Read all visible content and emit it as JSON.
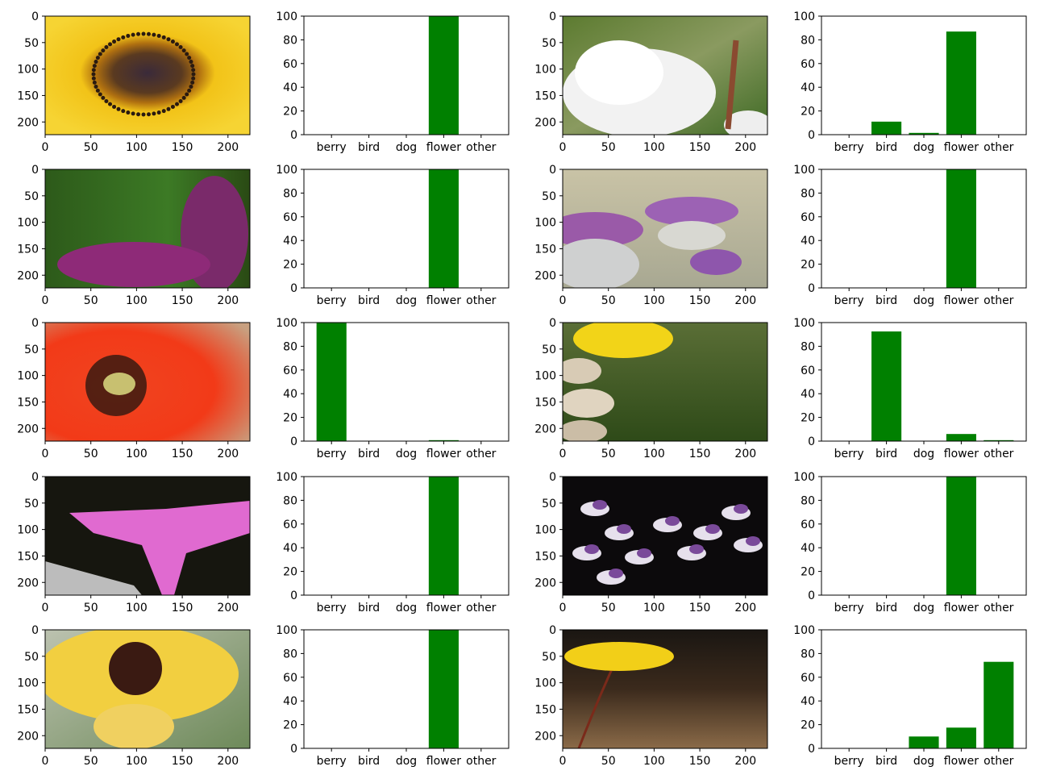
{
  "chart_data": [
    {
      "type": "image",
      "row": 1,
      "col": 1,
      "subject": "sunflower close-up",
      "xlim": [
        0,
        224
      ],
      "ylim": [
        224,
        0
      ],
      "xticks": [
        0,
        50,
        100,
        150,
        200
      ],
      "yticks": [
        0,
        50,
        100,
        150,
        200
      ]
    },
    {
      "type": "bar",
      "row": 1,
      "col": 2,
      "categories": [
        "berry",
        "bird",
        "dog",
        "flower",
        "other"
      ],
      "values": [
        0,
        0,
        0,
        100,
        0
      ],
      "ylim": [
        0,
        100
      ],
      "yticks": [
        0,
        20,
        40,
        60,
        80,
        100
      ],
      "color": "#008000"
    },
    {
      "type": "image",
      "row": 1,
      "col": 3,
      "subject": "white peony",
      "xlim": [
        0,
        224
      ],
      "ylim": [
        224,
        0
      ],
      "xticks": [
        0,
        50,
        100,
        150,
        200
      ],
      "yticks": [
        0,
        50,
        100,
        150,
        200
      ]
    },
    {
      "type": "bar",
      "row": 1,
      "col": 4,
      "categories": [
        "berry",
        "bird",
        "dog",
        "flower",
        "other"
      ],
      "values": [
        0,
        11,
        1.5,
        87,
        0
      ],
      "ylim": [
        0,
        100
      ],
      "yticks": [
        0,
        20,
        40,
        60,
        80,
        100
      ],
      "color": "#008000"
    },
    {
      "type": "image",
      "row": 2,
      "col": 1,
      "subject": "purple lilac",
      "xlim": [
        0,
        224
      ],
      "ylim": [
        224,
        0
      ],
      "xticks": [
        0,
        50,
        100,
        150,
        200
      ],
      "yticks": [
        0,
        50,
        100,
        150,
        200
      ]
    },
    {
      "type": "bar",
      "row": 2,
      "col": 2,
      "categories": [
        "berry",
        "bird",
        "dog",
        "flower",
        "other"
      ],
      "values": [
        0,
        0,
        0,
        100,
        0
      ],
      "ylim": [
        0,
        100
      ],
      "yticks": [
        0,
        20,
        40,
        60,
        80,
        100
      ],
      "color": "#008000"
    },
    {
      "type": "image",
      "row": 2,
      "col": 3,
      "subject": "thistles",
      "xlim": [
        0,
        224
      ],
      "ylim": [
        224,
        0
      ],
      "xticks": [
        0,
        50,
        100,
        150,
        200
      ],
      "yticks": [
        0,
        50,
        100,
        150,
        200
      ]
    },
    {
      "type": "bar",
      "row": 2,
      "col": 4,
      "categories": [
        "berry",
        "bird",
        "dog",
        "flower",
        "other"
      ],
      "values": [
        0,
        0,
        0,
        100,
        0
      ],
      "ylim": [
        0,
        100
      ],
      "yticks": [
        0,
        20,
        40,
        60,
        80,
        100
      ],
      "color": "#008000"
    },
    {
      "type": "image",
      "row": 3,
      "col": 1,
      "subject": "red poppy",
      "xlim": [
        0,
        224
      ],
      "ylim": [
        224,
        0
      ],
      "xticks": [
        0,
        50,
        100,
        150,
        200
      ],
      "yticks": [
        0,
        50,
        100,
        150,
        200
      ]
    },
    {
      "type": "bar",
      "row": 3,
      "col": 2,
      "categories": [
        "berry",
        "bird",
        "dog",
        "flower",
        "other"
      ],
      "values": [
        100,
        0,
        0,
        0.8,
        0
      ],
      "ylim": [
        0,
        100
      ],
      "yticks": [
        0,
        20,
        40,
        60,
        80,
        100
      ],
      "color": "#008000"
    },
    {
      "type": "image",
      "row": 3,
      "col": 3,
      "subject": "yellow dandelion over stones",
      "xlim": [
        0,
        224
      ],
      "ylim": [
        224,
        0
      ],
      "xticks": [
        0,
        50,
        100,
        150,
        200
      ],
      "yticks": [
        0,
        50,
        100,
        150,
        200
      ]
    },
    {
      "type": "bar",
      "row": 3,
      "col": 4,
      "categories": [
        "berry",
        "bird",
        "dog",
        "flower",
        "other"
      ],
      "values": [
        0,
        92.5,
        0,
        6,
        0.8
      ],
      "ylim": [
        0,
        100
      ],
      "yticks": [
        0,
        20,
        40,
        60,
        80,
        100
      ],
      "color": "#008000"
    },
    {
      "type": "image",
      "row": 4,
      "col": 1,
      "subject": "pink morning glory",
      "xlim": [
        0,
        224
      ],
      "ylim": [
        224,
        0
      ],
      "xticks": [
        0,
        50,
        100,
        150,
        200
      ],
      "yticks": [
        0,
        50,
        100,
        150,
        200
      ]
    },
    {
      "type": "bar",
      "row": 4,
      "col": 2,
      "categories": [
        "berry",
        "bird",
        "dog",
        "flower",
        "other"
      ],
      "values": [
        0,
        0,
        0,
        100,
        0
      ],
      "ylim": [
        0,
        100
      ],
      "yticks": [
        0,
        20,
        40,
        60,
        80,
        100
      ],
      "color": "#008000"
    },
    {
      "type": "image",
      "row": 4,
      "col": 3,
      "subject": "purple and white flowers",
      "xlim": [
        0,
        224
      ],
      "ylim": [
        224,
        0
      ],
      "xticks": [
        0,
        50,
        100,
        150,
        200
      ],
      "yticks": [
        0,
        50,
        100,
        150,
        200
      ]
    },
    {
      "type": "bar",
      "row": 4,
      "col": 4,
      "categories": [
        "berry",
        "bird",
        "dog",
        "flower",
        "other"
      ],
      "values": [
        0,
        0,
        0,
        100,
        0
      ],
      "ylim": [
        0,
        100
      ],
      "yticks": [
        0,
        20,
        40,
        60,
        80,
        100
      ],
      "color": "#008000"
    },
    {
      "type": "image",
      "row": 5,
      "col": 1,
      "subject": "sunflower",
      "xlim": [
        0,
        224
      ],
      "ylim": [
        224,
        0
      ],
      "xticks": [
        0,
        50,
        100,
        150,
        200
      ],
      "yticks": [
        0,
        50,
        100,
        150,
        200
      ]
    },
    {
      "type": "bar",
      "row": 5,
      "col": 2,
      "categories": [
        "berry",
        "bird",
        "dog",
        "flower",
        "other"
      ],
      "values": [
        0,
        0,
        0,
        100,
        0
      ],
      "ylim": [
        0,
        100
      ],
      "yticks": [
        0,
        20,
        40,
        60,
        80,
        100
      ],
      "color": "#008000"
    },
    {
      "type": "image",
      "row": 5,
      "col": 3,
      "subject": "single dandelion",
      "xlim": [
        0,
        224
      ],
      "ylim": [
        224,
        0
      ],
      "xticks": [
        0,
        50,
        100,
        150,
        200
      ],
      "yticks": [
        0,
        50,
        100,
        150,
        200
      ]
    },
    {
      "type": "bar",
      "row": 5,
      "col": 4,
      "categories": [
        "berry",
        "bird",
        "dog",
        "flower",
        "other"
      ],
      "values": [
        0,
        0,
        10,
        17.5,
        73
      ],
      "ylim": [
        0,
        100
      ],
      "yticks": [
        0,
        20,
        40,
        60,
        80,
        100
      ],
      "color": "#008000"
    }
  ]
}
